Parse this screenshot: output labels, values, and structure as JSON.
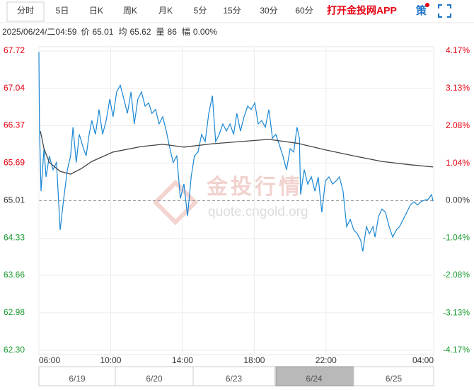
{
  "toolbar": {
    "tabs": [
      "分时",
      "5日",
      "日K",
      "周K",
      "月K",
      "5分",
      "15分",
      "30分",
      "60分"
    ],
    "selected": 0,
    "app_link": "打开金投网APP",
    "menu": "策"
  },
  "info": {
    "datetime": "2025/06/24/二04:59",
    "items": [
      {
        "label": "价",
        "value": 65.01
      },
      {
        "label": "均",
        "value": 65.62
      },
      {
        "label": "量",
        "value": 86
      },
      {
        "label": "幅",
        "value": "0.00%"
      }
    ]
  },
  "chart_data": {
    "type": "line",
    "xlim": [
      0,
      1320
    ],
    "xticks": [
      {
        "value": 0,
        "label": "06:00"
      },
      {
        "value": 240,
        "label": "10:00"
      },
      {
        "value": 480,
        "label": "14:00"
      },
      {
        "value": 720,
        "label": "18:00"
      },
      {
        "value": 960,
        "label": "22:00"
      },
      {
        "value": 1320,
        "label": "04:00"
      }
    ],
    "ylim": [
      62.3,
      67.72
    ],
    "yticks": [
      {
        "value": 62.3,
        "label": "62.30"
      },
      62.98,
      63.66,
      64.33,
      65.01,
      65.69,
      66.37,
      67.04,
      67.72
    ],
    "y2lim": [
      -4.17,
      4.17
    ],
    "y2ticks": [
      {
        "value": -4.17,
        "label": "-4.17%"
      },
      {
        "value": -3.13,
        "label": "-3.13%"
      },
      {
        "value": -2.08,
        "label": "-2.08%"
      },
      {
        "value": -1.04,
        "label": "-1.04%"
      },
      {
        "value": 0,
        "label": "0.00%"
      },
      {
        "value": 1.04,
        "label": "1.04%"
      },
      {
        "value": 2.08,
        "label": "2.08%"
      },
      {
        "value": 3.13,
        "label": "3.13%"
      },
      {
        "value": 4.17,
        "label": "4.17%"
      }
    ],
    "baseline": 65.01,
    "grid": true,
    "series": [
      {
        "color": "#1a87d4",
        "x": [
          0,
          2,
          7,
          17,
          24,
          35,
          47,
          59,
          71,
          83,
          95,
          106,
          114,
          125,
          135,
          149,
          158,
          168,
          177,
          189,
          201,
          213,
          225,
          237,
          248,
          260,
          272,
          284,
          296,
          308,
          319,
          331,
          343,
          355,
          367,
          378,
          390,
          402,
          414,
          426,
          438,
          449,
          461,
          473,
          485,
          497,
          509,
          520,
          532,
          544,
          556,
          568,
          580,
          591,
          603,
          615,
          627,
          639,
          651,
          662,
          674,
          686,
          698,
          710,
          722,
          733,
          745,
          757,
          769,
          781,
          792,
          804,
          816,
          828,
          840,
          852,
          863,
          871,
          875,
          887,
          899,
          911,
          923,
          934,
          946,
          958,
          970,
          982,
          994,
          1005,
          1017,
          1029,
          1041,
          1053,
          1065,
          1076,
          1083,
          1095,
          1105,
          1117,
          1124,
          1136,
          1147,
          1159,
          1171,
          1183,
          1195,
          1206,
          1218,
          1230,
          1242,
          1254,
          1266,
          1277,
          1289,
          1301,
          1313,
          1318
        ],
        "values": [
          67.7,
          66.34,
          65.18,
          65.95,
          65.44,
          65.82,
          65.57,
          65.7,
          64.48,
          65.05,
          65.57,
          65.82,
          66.34,
          65.7,
          66.21,
          65.95,
          65.82,
          66.21,
          66.46,
          66.21,
          66.66,
          66.21,
          66.46,
          66.85,
          66.53,
          66.98,
          67.1,
          66.85,
          66.59,
          66.98,
          66.4,
          66.85,
          66.98,
          66.72,
          66.78,
          66.59,
          66.66,
          66.4,
          66.53,
          66.27,
          65.95,
          65.7,
          65.82,
          65.05,
          65.31,
          64.73,
          65.44,
          65.82,
          65.89,
          66.21,
          66.08,
          66.59,
          66.91,
          66.08,
          66.21,
          66.4,
          66.27,
          66.4,
          66.21,
          66.59,
          66.27,
          66.53,
          66.72,
          66.66,
          66.78,
          66.4,
          66.46,
          66.34,
          66.66,
          66.14,
          66.21,
          66.02,
          65.82,
          65.57,
          65.95,
          65.89,
          66.34,
          66.14,
          65.12,
          65.57,
          65.31,
          65.44,
          65.18,
          65.44,
          64.8,
          65.37,
          65.44,
          65.31,
          65.37,
          65.44,
          65.18,
          64.54,
          64.67,
          64.48,
          64.41,
          64.29,
          64.09,
          64.54,
          64.41,
          64.54,
          64.35,
          64.73,
          64.86,
          64.8,
          64.54,
          64.35,
          64.48,
          64.54,
          64.67,
          64.8,
          64.93,
          64.99,
          64.93,
          64.99,
          65.02,
          65.03,
          65.12,
          65.0
        ]
      },
      {
        "color": "#444444",
        "x": [
          5,
          17,
          35,
          71,
          106,
          142,
          177,
          248,
          343,
          414,
          485,
          580,
          674,
          769,
          863,
          958,
          1053,
          1147,
          1242,
          1318
        ],
        "values": [
          66.27,
          65.95,
          65.7,
          65.54,
          65.49,
          65.59,
          65.72,
          65.89,
          65.99,
          66.03,
          65.98,
          66.04,
          66.08,
          66.12,
          66.05,
          65.93,
          65.82,
          65.72,
          65.66,
          65.62
        ]
      }
    ]
  },
  "watermark": [
    "金投行情",
    "quote.cngold.org"
  ],
  "navigator": {
    "dates": [
      "6/19",
      "6/20",
      "6/23",
      "6/24",
      "6/25"
    ],
    "selected": 3
  }
}
